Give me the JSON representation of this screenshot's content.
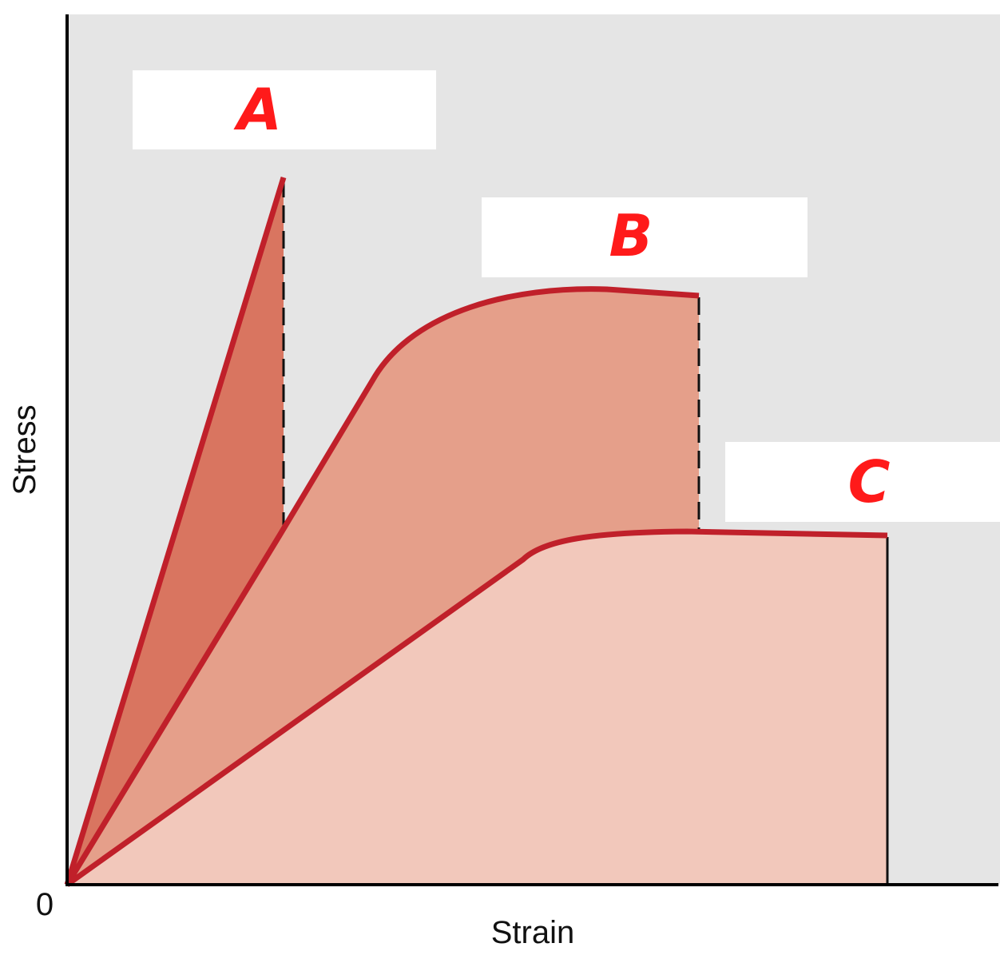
{
  "axes": {
    "y_label": "Stress",
    "x_label": "Strain",
    "origin_label": "0"
  },
  "labels": {
    "a": "A",
    "b": "B",
    "c": "C"
  },
  "colors": {
    "plot_background": "#e5e5e5",
    "curve_stroke": "#c0202a",
    "region_a_fill": "#d97560",
    "region_b_fill": "#e59f8a",
    "region_c_fill": "#f2c8bb",
    "label_text": "#ff1a1a"
  }
}
